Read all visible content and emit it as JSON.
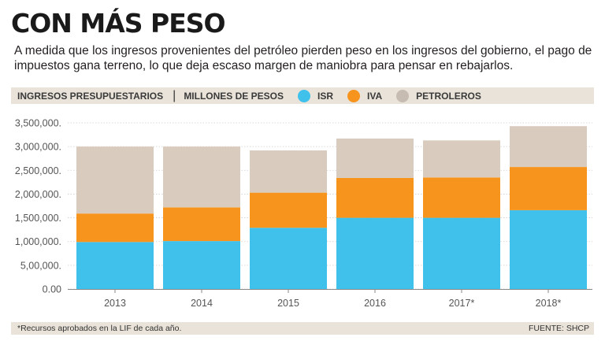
{
  "header": {
    "title": "CON MÁS PESO",
    "subtitle": "A medida que los ingresos provenientes del petróleo pierden peso en los ingresos del gobierno, el pago de impuestos gana terreno, lo que deja escaso margen de maniobra para pensar en rebajarlos."
  },
  "legend": {
    "title": "INGRESOS PRESUPUESTARIOS",
    "separator": "|",
    "units": "MILLONES DE PESOS",
    "items": [
      {
        "label": "ISR",
        "color": "#3fc1ec"
      },
      {
        "label": "IVA",
        "color": "#f7941d"
      },
      {
        "label": "PETROLEROS",
        "color": "#c7bcb1"
      }
    ]
  },
  "chart_data": {
    "type": "bar",
    "stacked": true,
    "categories": [
      "2013",
      "2014",
      "2015",
      "2016",
      "2017*",
      "2018*"
    ],
    "series": [
      {
        "name": "ISR",
        "color": "#3fc1ec",
        "values": [
          990000,
          1010000,
          1290000,
          1500000,
          1500000,
          1660000
        ]
      },
      {
        "name": "IVA",
        "color": "#f7941d",
        "values": [
          600000,
          710000,
          740000,
          840000,
          850000,
          910000
        ]
      },
      {
        "name": "PETROLEROS",
        "color": "#d9cbbd",
        "values": [
          1410000,
          1280000,
          890000,
          830000,
          780000,
          860000
        ]
      }
    ],
    "ylim": [
      0,
      3500000
    ],
    "yticks": [
      0,
      500000,
      1000000,
      1500000,
      2000000,
      2500000,
      3000000,
      3500000
    ],
    "ytick_labels": [
      "0.00",
      "5,00,000.",
      "1,000,000.",
      "1,500,000.",
      "2,000,000.",
      "2,500,000.",
      "3,000,000.",
      "3,500,000."
    ],
    "grid": true,
    "xlabel": "",
    "ylabel": ""
  },
  "footer": {
    "note": "*Recursos aprobados en la LIF de cada año.",
    "source": "FUENTE: SHCP"
  }
}
